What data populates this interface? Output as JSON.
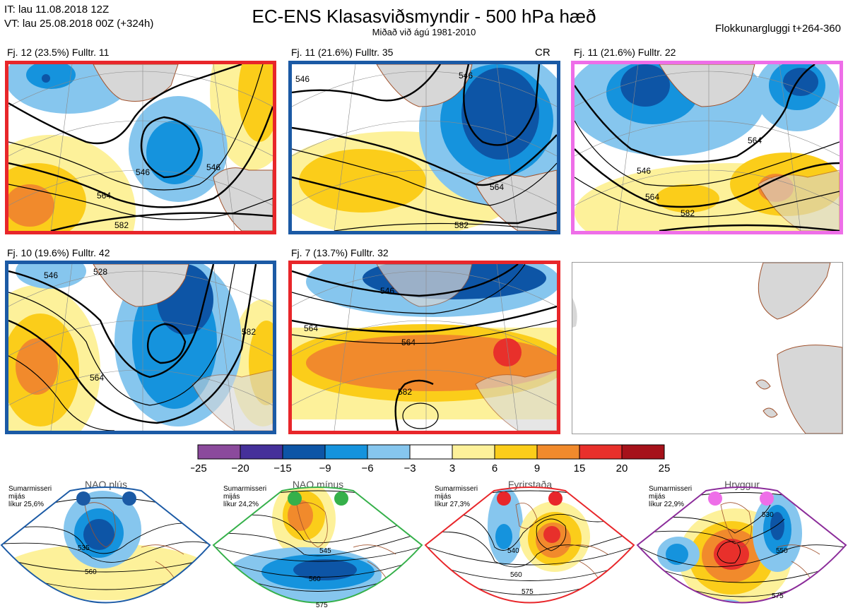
{
  "header": {
    "it": "IT: lau 11.08.2018 12Z",
    "vt": "VT: lau 25.08.2018 00Z  (+324h)",
    "title": "EC-ENS Klasasviðsmyndir - 500 hPa hæð",
    "subtitle": "Miðað við ágú 1981-2010",
    "right": "Flokkunargluggi t+264-360"
  },
  "panels": [
    {
      "label": "Fj. 12 (23.5%)   Fulltr. 11",
      "badge": "",
      "frame_color": "#e8262a",
      "contours": [
        "546",
        "564",
        "582",
        "546"
      ]
    },
    {
      "label": "Fj. 11 (21.6%)   Fulltr. 35",
      "badge": "CR",
      "frame_color": "#1b5aa5",
      "contours": [
        "546",
        "546",
        "564",
        "582"
      ]
    },
    {
      "label": "Fj. 11 (21.6%)   Fulltr. 22",
      "badge": "",
      "frame_color": "#ee6ee8",
      "contours": [
        "546",
        "564",
        "582",
        "564"
      ]
    },
    {
      "label": "Fj. 10 (19.6%)   Fulltr. 42",
      "badge": "",
      "frame_color": "#1b5aa5",
      "contours": [
        "546",
        "564",
        "582",
        "528"
      ]
    },
    {
      "label": "Fj. 7 (13.7%)   Fulltr. 32",
      "badge": "",
      "frame_color": "#e8262a",
      "contours": [
        "546",
        "564",
        "582",
        "564"
      ]
    }
  ],
  "chart_data": {
    "type": "heatmap",
    "title": "EC-ENS Klasasviðsmyndir - 500 hPa hæð",
    "colorbar": {
      "ticks": [
        "−25",
        "−20",
        "−15",
        "−9",
        "−6",
        "−3",
        "3",
        "6",
        "9",
        "15",
        "20",
        "25"
      ],
      "bins": [
        {
          "from": -25,
          "to": -20,
          "color": "#8b4a9c"
        },
        {
          "from": -20,
          "to": -15,
          "color": "#45309a"
        },
        {
          "from": -15,
          "to": -9,
          "color": "#0d55a6"
        },
        {
          "from": -9,
          "to": -6,
          "color": "#1593dd"
        },
        {
          "from": -6,
          "to": -3,
          "color": "#86c6ee"
        },
        {
          "from": -3,
          "to": 3,
          "color": "#ffffff"
        },
        {
          "from": 3,
          "to": 6,
          "color": "#fdf19a"
        },
        {
          "from": 6,
          "to": 9,
          "color": "#fbcd1a"
        },
        {
          "from": 9,
          "to": 15,
          "color": "#f18a2c"
        },
        {
          "from": 15,
          "to": 20,
          "color": "#e8302b"
        },
        {
          "from": 20,
          "to": 25,
          "color": "#a6121a"
        }
      ]
    }
  },
  "regimes": [
    {
      "name": "NAO plús",
      "info1": "Sumarmisseri",
      "info2": "mijás",
      "info3": "líkur 25,6%",
      "color": "#1b5aa5",
      "contours": [
        "535",
        "560"
      ]
    },
    {
      "name": "NAO mínus",
      "info1": "Sumarmisseri",
      "info2": "mijás",
      "info3": "líkur 24,2%",
      "color": "#35b04a",
      "contours": [
        "545",
        "560",
        "575"
      ]
    },
    {
      "name": "Fyrirstaða",
      "info1": "Sumarmisseri",
      "info2": "mijás",
      "info3": "líkur 27,3%",
      "color": "#e8262a",
      "contours": [
        "540",
        "560",
        "575"
      ]
    },
    {
      "name": "Hryggur",
      "info1": "Sumarmisseri",
      "info2": "mijás",
      "info3": "líkur 22,9%",
      "color": "#8b2c9a",
      "contours": [
        "530",
        "550",
        "575"
      ]
    }
  ],
  "colors": {
    "land": "#d7d7d7",
    "coast": "#a0522d",
    "contour": "#000000",
    "grid": "#8a8a8a"
  }
}
